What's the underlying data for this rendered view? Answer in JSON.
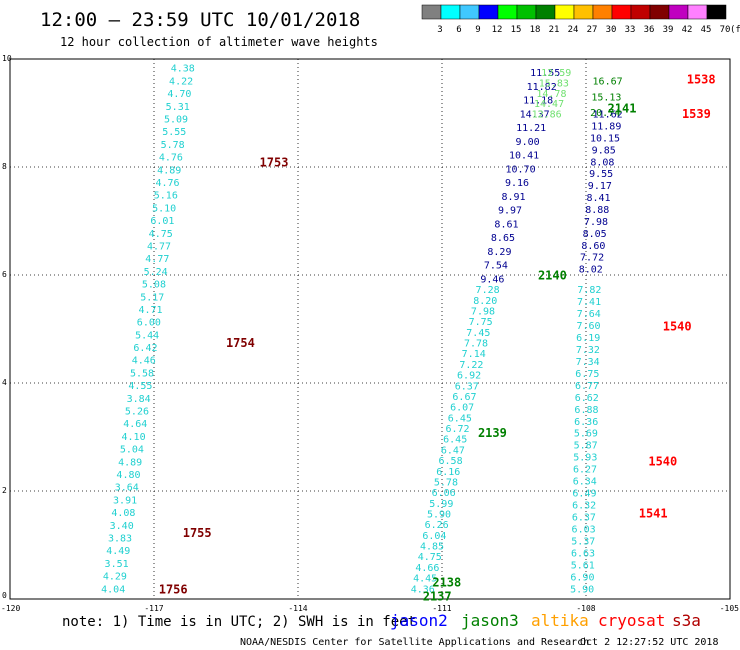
{
  "header": {
    "title": "12:00 – 23:59 UTC 10/01/2018",
    "subtitle": "12 hour collection of altimeter wave heights"
  },
  "color_scale": {
    "labels": [
      "3",
      "6",
      "9",
      "12",
      "15",
      "18",
      "21",
      "24",
      "27",
      "30",
      "33",
      "36",
      "39",
      "42",
      "45",
      "70"
    ],
    "unit": "(ft)",
    "colors": [
      "#808080",
      "#00ffff",
      "#40c8ff",
      "#0000ff",
      "#00ff00",
      "#00c000",
      "#008000",
      "#ffff00",
      "#ffc000",
      "#ff8000",
      "#ff0000",
      "#c00000",
      "#800000",
      "#c000c0",
      "#ff80ff",
      "#000000"
    ]
  },
  "axes": {
    "y_ticks": [
      "10",
      "8",
      "6",
      "4",
      "2",
      "0"
    ],
    "x_ticks": [
      "-120",
      "-117",
      "-114",
      "-111",
      "-108",
      "-105"
    ]
  },
  "tracks": [
    {
      "id": "t1",
      "lon_top": -116.4,
      "lat_top": 9.82,
      "lon_bot": -117.85,
      "lat_bot": 0.18,
      "color": "#20d0d0",
      "values": [
        "4.38",
        "4.22",
        "4.70",
        "5.31",
        "5.09",
        "5.55",
        "5.78",
        "4.76",
        "4.89",
        "4.76",
        "5.16",
        "5.10",
        "6.01",
        "4.75",
        "4.77",
        "4.77",
        "5.24",
        "5.08",
        "5.17",
        "4.71",
        "6.00",
        "5.44",
        "6.42",
        "4.46",
        "5.58",
        "4.55",
        "3.84",
        "5.26",
        "4.64",
        "4.10",
        "5.04",
        "4.89",
        "4.80",
        "3.64",
        "3.91",
        "4.08",
        "3.40",
        "3.83",
        "4.49",
        "3.51",
        "4.29",
        "4.04"
      ]
    },
    {
      "id": "t2a",
      "lon_top": -108.85,
      "lat_top": 9.74,
      "lon_bot": -109.95,
      "lat_bot": 5.92,
      "color": "#000090",
      "values": [
        "11.55",
        "11.82",
        "11.18",
        "14.37",
        "11.21",
        "9.00",
        "10.41",
        "10.70",
        "9.16",
        "8.91",
        "9.97",
        "8.61",
        "8.65",
        "8.29",
        "7.54",
        "9.46"
      ]
    },
    {
      "id": "t2b",
      "lon_top": -110.05,
      "lat_top": 5.72,
      "lon_bot": -111.4,
      "lat_bot": 0.18,
      "color": "#20d0d0",
      "values": [
        "7.28",
        "8.20",
        "7.98",
        "7.75",
        "7.45",
        "7.78",
        "7.14",
        "7.22",
        "6.92",
        "6.37",
        "6.67",
        "6.07",
        "6.45",
        "6.72",
        "6.45",
        "6.47",
        "6.58",
        "6.16",
        "5.78",
        "6.06",
        "5.99",
        "5.90",
        "6.26",
        "6.04",
        "4.85",
        "4.75",
        "4.66",
        "4.45",
        "4.36"
      ]
    },
    {
      "id": "t_alt",
      "lon_top": -108.62,
      "lat_top": 9.74,
      "lon_bot": -108.82,
      "lat_bot": 8.97,
      "color": "#70e070",
      "values": [
        "12.59",
        "15.83",
        "14.78",
        "14.47",
        "12.86"
      ]
    },
    {
      "id": "t3a",
      "lon_top": -107.55,
      "lat_top": 9.58,
      "lon_bot": -107.6,
      "lat_bot": 9.0,
      "color": "#008000",
      "values": [
        "16.67",
        "15.13",
        "20.74"
      ]
    },
    {
      "id": "t3b",
      "lon_top": -107.55,
      "lat_top": 8.97,
      "lon_bot": -107.9,
      "lat_bot": 6.1,
      "color": "#000090",
      "values": [
        "11.62",
        "11.89",
        "10.15",
        "9.85",
        "8.08",
        "9.55",
        "9.17",
        "8.41",
        "8.88",
        "7.98",
        "8.05",
        "8.60",
        "7.72",
        "8.02"
      ]
    },
    {
      "id": "t3c",
      "lon_top": -107.93,
      "lat_top": 5.72,
      "lon_bot": -108.08,
      "lat_bot": 0.18,
      "color": "#20d0d0",
      "values": [
        "7.82",
        "7.41",
        "7.64",
        "7.60",
        "6.19",
        "7.32",
        "7.34",
        "6.75",
        "6.77",
        "6.62",
        "6.88",
        "6.36",
        "5.69",
        "5.87",
        "5.93",
        "6.27",
        "6.34",
        "6.49",
        "6.32",
        "6.37",
        "6.03",
        "5.37",
        "6.63",
        "5.61",
        "6.90",
        "5.90"
      ]
    }
  ],
  "time_labels": [
    {
      "text": "1753",
      "lon": -114.5,
      "lat": 8.08,
      "color": "#800000"
    },
    {
      "text": "1754",
      "lon": -115.2,
      "lat": 4.74,
      "color": "#800000"
    },
    {
      "text": "1755",
      "lon": -116.1,
      "lat": 1.22,
      "color": "#800000"
    },
    {
      "text": "1756",
      "lon": -116.6,
      "lat": 0.18,
      "color": "#800000"
    },
    {
      "text": "2141",
      "lon": -107.25,
      "lat": 9.08,
      "color": "#008000"
    },
    {
      "text": "2140",
      "lon": -108.7,
      "lat": 5.99,
      "color": "#008000"
    },
    {
      "text": "2139",
      "lon": -109.95,
      "lat": 3.07,
      "color": "#008000"
    },
    {
      "text": "2138",
      "lon": -110.9,
      "lat": 0.31,
      "color": "#008000"
    },
    {
      "text": "2137",
      "lon": -111.1,
      "lat": 0.05,
      "color": "#008000"
    },
    {
      "text": "1538",
      "lon": -105.6,
      "lat": 9.62,
      "color": "#ff0000"
    },
    {
      "text": "1539",
      "lon": -105.7,
      "lat": 8.98,
      "color": "#ff0000"
    },
    {
      "text": "1540",
      "lon": -106.1,
      "lat": 5.05,
      "color": "#ff0000"
    },
    {
      "text": "1540",
      "lon": -106.4,
      "lat": 2.55,
      "color": "#ff0000"
    },
    {
      "text": "1541",
      "lon": -106.6,
      "lat": 1.58,
      "color": "#ff0000"
    }
  ],
  "legend": {
    "note": "note: 1) Time is in UTC; 2) SWH is in feet",
    "satellites": [
      {
        "name": "jason2",
        "color": "#0000ff"
      },
      {
        "name": "jason3",
        "color": "#008000"
      },
      {
        "name": "altika",
        "color": "#ffa000"
      },
      {
        "name": "cryosat",
        "color": "#ff0000"
      },
      {
        "name": "s3a",
        "color": "#b00000"
      }
    ]
  },
  "footer": {
    "credit": "NOAA/NESDIS Center for Satellite Applications and Research",
    "timestamp": "Oct  2 12:27:52 UTC 2018"
  }
}
